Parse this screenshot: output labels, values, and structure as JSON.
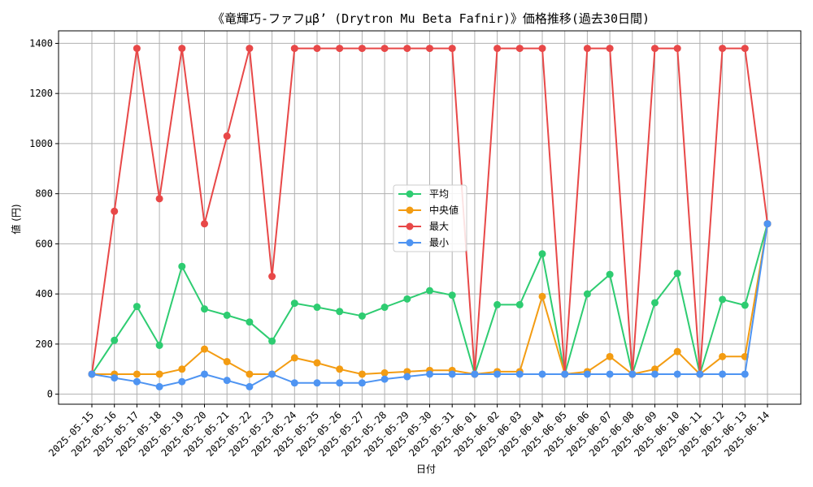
{
  "chart_data": {
    "type": "line",
    "title": "《竜輝巧-ファフμβ’ (Drytron Mu Beta Fafnir)》価格推移(過去30日間)",
    "xlabel": "日付",
    "ylabel": "値 (円)",
    "ylim": [
      -40,
      1450
    ],
    "yticks": [
      0,
      200,
      400,
      600,
      800,
      1000,
      1200,
      1400
    ],
    "grid": true,
    "legend_position": "center",
    "categories": [
      "2025-05-15",
      "2025-05-16",
      "2025-05-17",
      "2025-05-18",
      "2025-05-19",
      "2025-05-20",
      "2025-05-21",
      "2025-05-22",
      "2025-05-23",
      "2025-05-24",
      "2025-05-25",
      "2025-05-26",
      "2025-05-27",
      "2025-05-28",
      "2025-05-29",
      "2025-05-30",
      "2025-05-31",
      "2025-06-01",
      "2025-06-02",
      "2025-06-03",
      "2025-06-04",
      "2025-06-05",
      "2025-06-06",
      "2025-06-07",
      "2025-06-08",
      "2025-06-09",
      "2025-06-10",
      "2025-06-11",
      "2025-06-12",
      "2025-06-13",
      "2025-06-14"
    ],
    "series": [
      {
        "name": "平均",
        "color": "#2ecc71",
        "values": [
          80,
          215,
          350,
          195,
          510,
          340,
          315,
          288,
          212,
          363,
          347,
          330,
          312,
          347,
          380,
          413,
          395,
          80,
          357,
          357,
          560,
          80,
          400,
          478,
          80,
          365,
          482,
          80,
          378,
          355,
          680
        ]
      },
      {
        "name": "中央値",
        "color": "#f39c12",
        "values": [
          80,
          80,
          80,
          80,
          100,
          180,
          130,
          80,
          80,
          145,
          125,
          100,
          80,
          85,
          90,
          95,
          95,
          80,
          90,
          90,
          390,
          80,
          90,
          150,
          80,
          100,
          170,
          80,
          150,
          150,
          680
        ]
      },
      {
        "name": "最大",
        "color": "#e84848",
        "values": [
          80,
          730,
          1380,
          780,
          1380,
          680,
          1030,
          1380,
          470,
          1380,
          1380,
          1380,
          1380,
          1380,
          1380,
          1380,
          1380,
          80,
          1380,
          1380,
          1380,
          80,
          1380,
          1380,
          80,
          1380,
          1380,
          80,
          1380,
          1380,
          680
        ]
      },
      {
        "name": "最小",
        "color": "#4e94f2",
        "values": [
          80,
          65,
          50,
          30,
          50,
          80,
          55,
          30,
          80,
          45,
          45,
          45,
          45,
          60,
          70,
          80,
          80,
          80,
          80,
          80,
          80,
          80,
          80,
          80,
          80,
          80,
          80,
          80,
          80,
          80,
          680
        ]
      }
    ]
  }
}
